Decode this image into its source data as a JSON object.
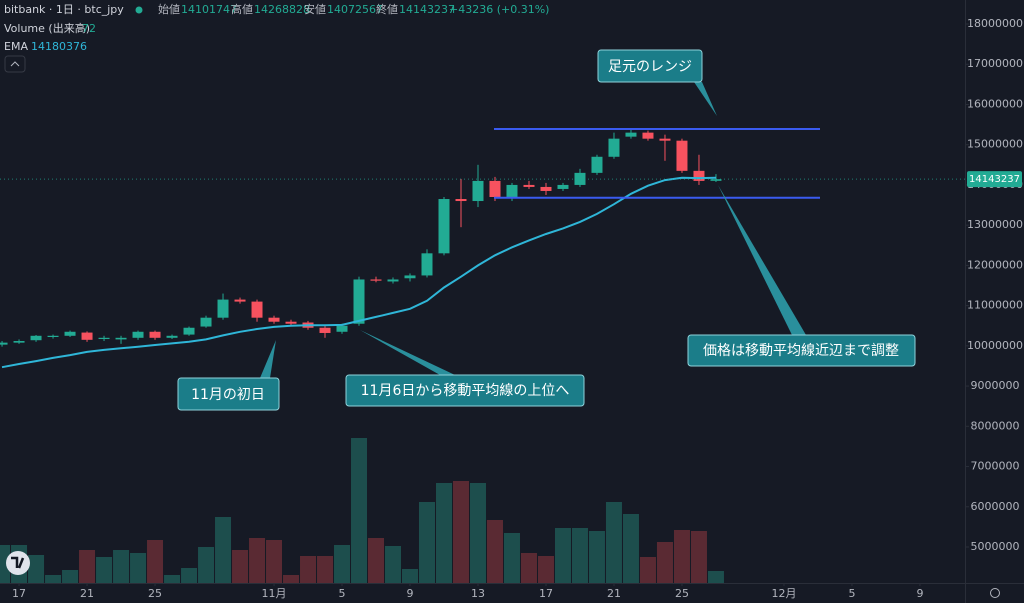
{
  "header": {
    "symbol": "bitbank · 1日 · btc_jpy",
    "open_label": "始値",
    "high_label": "高値",
    "low_label": "安値",
    "close_label": "終値",
    "change": "+43236 (+0.31%)",
    "volume_label": "Volume (出来高)",
    "ema_label": "EMA"
  },
  "chart_data": {
    "type": "candlestick",
    "up_color": "#22ab94",
    "down_color": "#f7525f",
    "volume_up_color": "#1d4e4d",
    "volume_down_color": "#5a2a33",
    "ema_color": "#2fb6d8",
    "range_line_color": "#3a5bf0",
    "open": [
      10030000,
      10080000,
      10140000,
      10220000,
      10250000,
      10330000,
      10170000,
      10160000,
      10200000,
      10350000,
      10200000,
      10280000,
      10480000,
      10700000,
      11150000,
      11100000,
      10700000,
      10600000,
      10580000,
      10450000,
      10350000,
      10550000,
      11650000,
      11600000,
      11680000,
      11750000,
      12300000,
      13650000,
      13600000,
      14100000,
      13700000,
      14000000,
      13950000,
      13900000,
      14000000,
      14300000,
      14700000,
      15200000,
      15300000,
      15150000,
      15100000,
      14350000,
      14101747
    ],
    "high": [
      10120000,
      10160000,
      10270000,
      10280000,
      10380000,
      10360000,
      10250000,
      10250000,
      10380000,
      10380000,
      10280000,
      10480000,
      10750000,
      11300000,
      11200000,
      11150000,
      10750000,
      10650000,
      10620000,
      10500000,
      10550000,
      11720000,
      11720000,
      11700000,
      11800000,
      12400000,
      13700000,
      14150000,
      14500000,
      14200000,
      14050000,
      14100000,
      14050000,
      14050000,
      14400000,
      14750000,
      15300000,
      15400000,
      15350000,
      15250000,
      15150000,
      14750000,
      14268828
    ],
    "low": [
      9980000,
      10050000,
      10100000,
      10180000,
      10220000,
      10100000,
      10120000,
      10050000,
      10150000,
      10150000,
      10170000,
      10250000,
      10450000,
      10650000,
      11050000,
      10600000,
      10550000,
      10500000,
      10400000,
      10200000,
      10300000,
      10500000,
      11580000,
      11550000,
      11600000,
      11700000,
      12250000,
      12950000,
      13450000,
      13600000,
      13600000,
      13900000,
      13750000,
      13850000,
      13950000,
      14250000,
      14650000,
      15150000,
      15100000,
      14600000,
      14300000,
      14000000,
      14072567
    ],
    "close": [
      10080000,
      10120000,
      10250000,
      10250000,
      10350000,
      10150000,
      10200000,
      10200000,
      10350000,
      10200000,
      10250000,
      10450000,
      10700000,
      11150000,
      11100000,
      10700000,
      10600000,
      10550000,
      10450000,
      10320000,
      10500000,
      11650000,
      11620000,
      11650000,
      11750000,
      12300000,
      13650000,
      13600000,
      14100000,
      13700000,
      14000000,
      13950000,
      13850000,
      14000000,
      14300000,
      14700000,
      15150000,
      15300000,
      15150000,
      15100000,
      14350000,
      14100000,
      14143237
    ],
    "volume": [
      228,
      228,
      168,
      48,
      78,
      198,
      156,
      198,
      180,
      258,
      48,
      90,
      216,
      396,
      198,
      270,
      258,
      48,
      162,
      162,
      228,
      870,
      270,
      222,
      84,
      486,
      600,
      612,
      600,
      378,
      300,
      180,
      162,
      330,
      330,
      312,
      486,
      414,
      156,
      246,
      318,
      312,
      72
    ],
    "ema": [
      9470000,
      9550000,
      9620000,
      9700000,
      9770000,
      9850000,
      9900000,
      9940000,
      9980000,
      10020000,
      10060000,
      10100000,
      10160000,
      10260000,
      10350000,
      10420000,
      10470000,
      10500000,
      10510000,
      10510000,
      10520000,
      10620000,
      10720000,
      10820000,
      10920000,
      11120000,
      11450000,
      11720000,
      12000000,
      12250000,
      12450000,
      12620000,
      12780000,
      12920000,
      13080000,
      13280000,
      13520000,
      13780000,
      13980000,
      14120000,
      14180000,
      14170000,
      14180376
    ],
    "range_lines": [
      15390000,
      13680000
    ],
    "xlim": [
      -0.12,
      56.65
    ],
    "xticks": [
      {
        "value": 1,
        "label": "17"
      },
      {
        "value": 5,
        "label": "21"
      },
      {
        "value": 9,
        "label": "25"
      },
      {
        "value": 16,
        "label": "11月"
      },
      {
        "value": 20,
        "label": "5"
      },
      {
        "value": 24,
        "label": "9"
      },
      {
        "value": 28,
        "label": "13"
      },
      {
        "value": 32,
        "label": "17"
      },
      {
        "value": 36,
        "label": "21"
      },
      {
        "value": 40,
        "label": "25"
      },
      {
        "value": 46,
        "label": "12月"
      },
      {
        "value": 50,
        "label": "5"
      },
      {
        "value": 54,
        "label": "9"
      }
    ],
    "ylim": [
      4105000,
      18597000
    ],
    "yticks": [
      5000000,
      6000000,
      7000000,
      8000000,
      9000000,
      10000000,
      11000000,
      12000000,
      13000000,
      14000000,
      15000000,
      16000000,
      17000000,
      18000000
    ],
    "annotations": [
      "足元のレンジ",
      "11月の初日",
      "11月6日から移動平均線の上位へ",
      "価格は移動平均線近辺まで調整"
    ]
  }
}
